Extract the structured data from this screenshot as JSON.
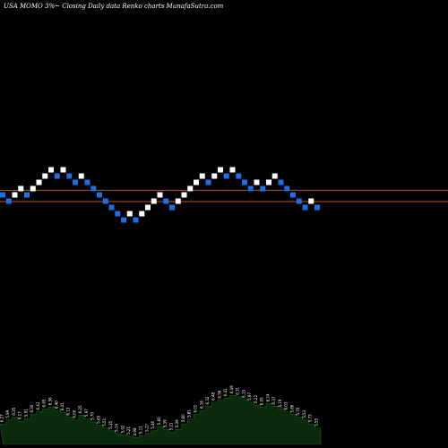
{
  "chart_data": {
    "type": "renko",
    "title": "USA MOMO 3%~  Closing Daily data  Renko  charts MunafaSutra.com",
    "colors": {
      "background": "#000000",
      "up_brick": "#ffffff",
      "down_brick": "#1e6ee6",
      "reference_line": "#b35a1e",
      "volume_fill": "#0b2a0b",
      "volume_edge": "#1a5a1a",
      "volume_label": "#ffffff"
    },
    "bricks": [
      {
        "dir": "down",
        "level": 0
      },
      {
        "dir": "down",
        "level": -1
      },
      {
        "dir": "up",
        "level": 0
      },
      {
        "dir": "up",
        "level": 1
      },
      {
        "dir": "down",
        "level": 0
      },
      {
        "dir": "up",
        "level": 1
      },
      {
        "dir": "up",
        "level": 2
      },
      {
        "dir": "up",
        "level": 3
      },
      {
        "dir": "up",
        "level": 4
      },
      {
        "dir": "down",
        "level": 3
      },
      {
        "dir": "up",
        "level": 4
      },
      {
        "dir": "down",
        "level": 3
      },
      {
        "dir": "down",
        "level": 2
      },
      {
        "dir": "up",
        "level": 3
      },
      {
        "dir": "down",
        "level": 2
      },
      {
        "dir": "down",
        "level": 1
      },
      {
        "dir": "down",
        "level": 0
      },
      {
        "dir": "down",
        "level": -1
      },
      {
        "dir": "down",
        "level": -2
      },
      {
        "dir": "down",
        "level": -3
      },
      {
        "dir": "down",
        "level": -4
      },
      {
        "dir": "up",
        "level": -3
      },
      {
        "dir": "down",
        "level": -4
      },
      {
        "dir": "up",
        "level": -3
      },
      {
        "dir": "up",
        "level": -2
      },
      {
        "dir": "up",
        "level": -1
      },
      {
        "dir": "up",
        "level": 0
      },
      {
        "dir": "down",
        "level": -1
      },
      {
        "dir": "down",
        "level": -2
      },
      {
        "dir": "up",
        "level": -1
      },
      {
        "dir": "up",
        "level": 0
      },
      {
        "dir": "up",
        "level": 1
      },
      {
        "dir": "up",
        "level": 2
      },
      {
        "dir": "up",
        "level": 3
      },
      {
        "dir": "down",
        "level": 2
      },
      {
        "dir": "up",
        "level": 3
      },
      {
        "dir": "up",
        "level": 4
      },
      {
        "dir": "down",
        "level": 3
      },
      {
        "dir": "up",
        "level": 4
      },
      {
        "dir": "down",
        "level": 3
      },
      {
        "dir": "down",
        "level": 2
      },
      {
        "dir": "down",
        "level": 1
      },
      {
        "dir": "up",
        "level": 2
      },
      {
        "dir": "down",
        "level": 1
      },
      {
        "dir": "up",
        "level": 2
      },
      {
        "dir": "up",
        "level": 3
      },
      {
        "dir": "down",
        "level": 2
      },
      {
        "dir": "down",
        "level": 1
      },
      {
        "dir": "down",
        "level": 0
      },
      {
        "dir": "down",
        "level": -1
      },
      {
        "dir": "down",
        "level": -2
      },
      {
        "dir": "up",
        "level": -1
      },
      {
        "dir": "down",
        "level": -2
      }
    ],
    "reference_levels": [
      1.3,
      -0.5
    ],
    "volume": [
      0.3,
      0.36,
      0.4,
      0.34,
      0.38,
      0.44,
      0.48,
      0.52,
      0.55,
      0.5,
      0.47,
      0.4,
      0.36,
      0.43,
      0.38,
      0.33,
      0.28,
      0.24,
      0.2,
      0.16,
      0.14,
      0.12,
      0.1,
      0.13,
      0.16,
      0.2,
      0.26,
      0.22,
      0.18,
      0.22,
      0.3,
      0.37,
      0.44,
      0.5,
      0.56,
      0.62,
      0.65,
      0.68,
      0.72,
      0.7,
      0.66,
      0.62,
      0.58,
      0.55,
      0.6,
      0.56,
      0.52,
      0.48,
      0.44,
      0.4,
      0.36,
      0.3,
      0.24
    ],
    "volume_labels": [
      "6.27",
      "5.99",
      "6.35",
      "6.17",
      "5.91",
      "6.30",
      "6.42",
      "6.65",
      "6.56",
      "6.40",
      "6.41",
      "6.13",
      "6.00",
      "6.25",
      "5.97",
      "5.70",
      "5.65",
      "5.51",
      "5.35",
      "5.14",
      "5.02",
      "5.21",
      "4.98",
      "5.11",
      "5.27",
      "5.46",
      "5.60",
      "5.39",
      "5.21",
      "5.39",
      "5.60",
      "5.81",
      "6.01",
      "6.16",
      "6.32",
      "6.48",
      "6.56",
      "6.41",
      "6.49",
      "6.31",
      "6.15",
      "5.97",
      "6.22",
      "6.05",
      "6.24",
      "6.37",
      "6.19",
      "6.03",
      "5.86",
      "5.70",
      "5.53",
      "5.73",
      "5.55"
    ]
  }
}
